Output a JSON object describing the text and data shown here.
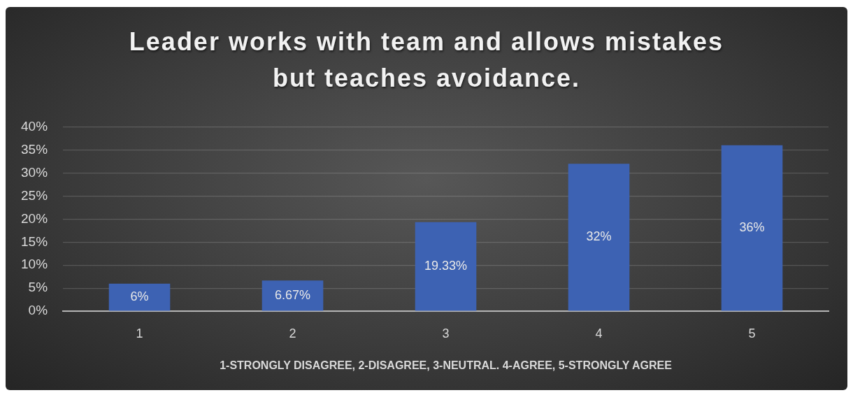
{
  "chart_data": {
    "type": "bar",
    "title": "Leader works with team and allows mistakes but teaches avoidance.",
    "xlabel": "1-STRONGLY DISAGREE, 2-DISAGREE, 3-NEUTRAL. 4-AGREE, 5-STRONGLY AGREE",
    "categories": [
      "1",
      "2",
      "3",
      "4",
      "5"
    ],
    "values": [
      6,
      6.67,
      19.33,
      32,
      36
    ],
    "color": "#3d62b3",
    "value_labels": [
      "6%",
      "6.67%",
      "19.33%",
      "32%",
      "36%"
    ],
    "ylim": [
      0,
      40
    ],
    "yticks": [
      {
        "value": 0,
        "label": "0%"
      },
      {
        "value": 5,
        "label": "5%"
      },
      {
        "value": 10,
        "label": "10%"
      },
      {
        "value": 15,
        "label": "15%"
      },
      {
        "value": 20,
        "label": "20%"
      },
      {
        "value": 25,
        "label": "25%"
      },
      {
        "value": 30,
        "label": "30%"
      },
      {
        "value": 35,
        "label": "35%"
      },
      {
        "value": 40,
        "label": "40%"
      }
    ],
    "grid": "y"
  }
}
